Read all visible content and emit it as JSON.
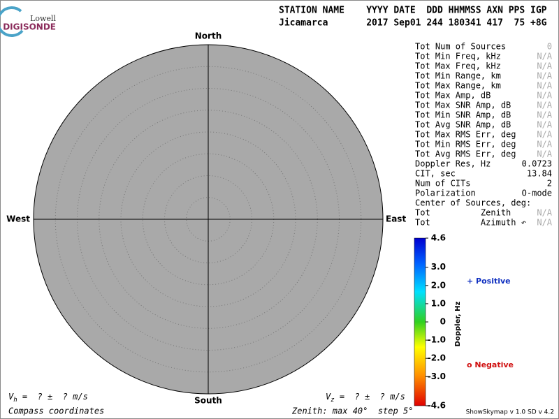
{
  "logo": {
    "top": "Lowell",
    "bottom": "DIGISONDE"
  },
  "header": {
    "line1": "STATION NAME    YYYY DATE  DDD HHMMSS AXN PPS IGP",
    "line2": "Jicamarca       2017 Sep01 244 180341 417  75 +8G"
  },
  "compass": {
    "north": "North",
    "south": "South",
    "east": "East",
    "west": "West"
  },
  "stats": [
    [
      "Tot Num of Sources",
      "0"
    ],
    [
      "Tot Min Freq, kHz",
      "N/A"
    ],
    [
      "Tot Max Freq, kHz",
      "N/A"
    ],
    [
      "Tot Min Range, km",
      "N/A"
    ],
    [
      "Tot Max Range, km",
      "N/A"
    ],
    [
      "Tot Max Amp, dB",
      "N/A"
    ],
    [
      "Tot Max SNR Amp, dB",
      "N/A"
    ],
    [
      "Tot Min SNR Amp, dB",
      "N/A"
    ],
    [
      "Tot Avg SNR Amp, dB",
      "N/A"
    ],
    [
      "Tot Max RMS Err, deg",
      "N/A"
    ],
    [
      "Tot Min RMS Err, deg",
      "N/A"
    ],
    [
      "Tot Avg RMS Err, deg",
      "N/A"
    ],
    [
      "Doppler Res, Hz",
      "0.0723"
    ],
    [
      "CIT, sec",
      "13.84"
    ],
    [
      "Num of CITs",
      "2"
    ],
    [
      "Polarization",
      "O-mode"
    ],
    [
      "Center of Sources, deg:",
      null
    ],
    [
      "Tot          Zenith",
      "N/A"
    ],
    [
      "Tot          Azimuth ↶",
      "N/A"
    ]
  ],
  "colorbar": {
    "title": "Doppler, Hz",
    "lim": [
      -4.6,
      4.6
    ],
    "ticks": [
      4.6,
      {
        "value": 3,
        "label": "3.0"
      },
      {
        "value": 2,
        "label": "2.0"
      },
      {
        "value": 1,
        "label": "1.0"
      },
      0,
      {
        "value": -1,
        "label": "-1.0"
      },
      {
        "value": -2,
        "label": "-2.0"
      },
      {
        "value": -3,
        "label": "-3.0"
      },
      -4.6
    ]
  },
  "legend": {
    "positive": "+ Positive",
    "negative": "o Negative"
  },
  "footer": {
    "vh_symbol": "V",
    "vh_sub": "h",
    "vh_text": " =  ? ±  ? m/s",
    "vz_symbol": "V",
    "vz_sub": "z",
    "vz_text": " =  ? ±  ? m/s",
    "left": "Compass coordinates",
    "zenith": "Zenith: max 40°  step 5°",
    "version": "ShowSkymap v 1.0  SD v 4.2"
  }
}
